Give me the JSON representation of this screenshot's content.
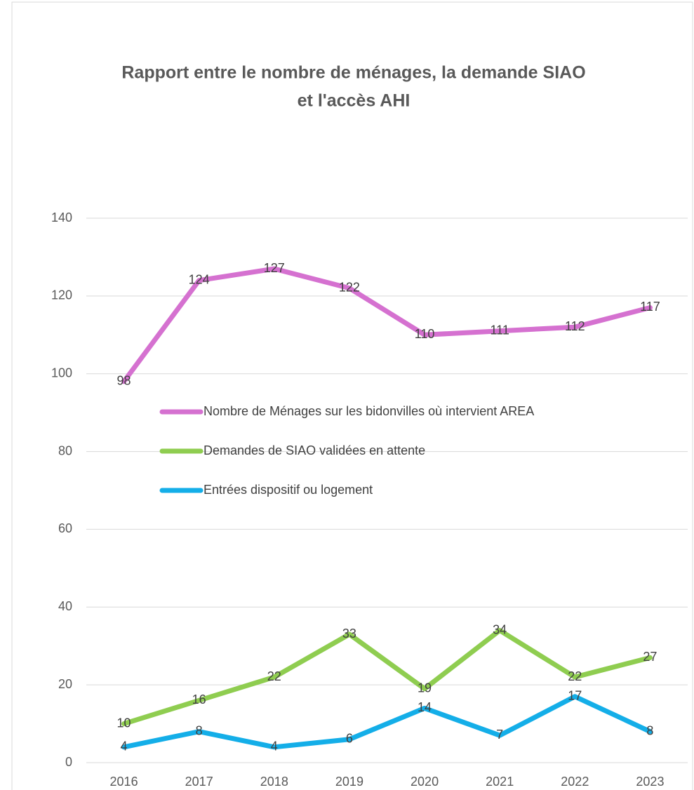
{
  "chart_data": {
    "type": "line",
    "title": [
      "Rapport entre le nombre de ménages, la demande SIAO",
      "et l'accès AHI"
    ],
    "categories": [
      "2016",
      "2017",
      "2018",
      "2019",
      "2020",
      "2021",
      "2022",
      "2023"
    ],
    "series": [
      {
        "name": "Nombre de Ménages sur les bidonvilles où intervient AREA",
        "color": "#d571d0",
        "values": [
          98,
          124,
          127,
          122,
          110,
          111,
          112,
          117
        ]
      },
      {
        "name": "Demandes de SIAO validées en attente",
        "color": "#8fcd50",
        "values": [
          10,
          16,
          22,
          33,
          19,
          34,
          22,
          27
        ]
      },
      {
        "name": "Entrées dispositif ou logement",
        "color": "#14aee8",
        "values": [
          4,
          8,
          4,
          6,
          14,
          7,
          17,
          8
        ]
      }
    ],
    "ylim": [
      0,
      140
    ],
    "yticks": [
      0,
      20,
      40,
      60,
      80,
      100,
      120,
      140
    ],
    "grid": true,
    "data_labels": true
  }
}
